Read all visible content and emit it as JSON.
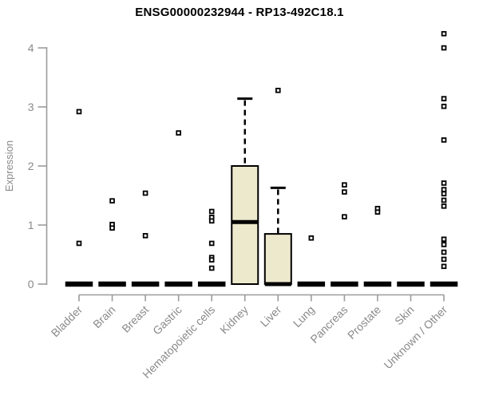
{
  "chart_data": {
    "type": "box",
    "title": "ENSG00000232944 - RP13-492C18.1",
    "ylabel": "Expression",
    "ylim": [
      0,
      4.3
    ],
    "yticks": [
      0,
      1,
      2,
      3,
      4
    ],
    "x_tick_rotation": -45,
    "legend": "none",
    "grid": false,
    "colors": {
      "box_fill": "#ede9cd",
      "box_stroke": "#000000",
      "median": "#000000",
      "outlier": "#000000",
      "axis": "#9b9b9b",
      "tick_label": "#8a8a8a",
      "title": "#000000",
      "background": "#ffffff"
    },
    "groups": [
      {
        "label": "Bladder",
        "q1": 0,
        "median": 0,
        "q3": 0,
        "whisker_low": 0,
        "whisker_high": 0,
        "outliers": [
          2.92,
          0.69
        ]
      },
      {
        "label": "Brain",
        "q1": 0,
        "median": 0,
        "q3": 0,
        "whisker_low": 0,
        "whisker_high": 0,
        "outliers": [
          1.41,
          1.01,
          0.95
        ]
      },
      {
        "label": "Breast",
        "q1": 0,
        "median": 0,
        "q3": 0,
        "whisker_low": 0,
        "whisker_high": 0,
        "outliers": [
          1.54,
          0.82
        ]
      },
      {
        "label": "Gastric",
        "q1": 0,
        "median": 0,
        "q3": 0,
        "whisker_low": 0,
        "whisker_high": 0,
        "outliers": [
          2.56
        ]
      },
      {
        "label": "Hematopoietic cells",
        "q1": 0,
        "median": 0,
        "q3": 0,
        "whisker_low": 0,
        "whisker_high": 0,
        "outliers": [
          1.23,
          1.13,
          1.07,
          0.69,
          0.45,
          0.41,
          0.27
        ]
      },
      {
        "label": "Kidney",
        "q1": 0,
        "median": 1.05,
        "q3": 2.0,
        "whisker_low": 0,
        "whisker_high": 3.14,
        "outliers": []
      },
      {
        "label": "Liver",
        "q1": 0,
        "median": 0,
        "q3": 0.85,
        "whisker_low": 0,
        "whisker_high": 1.63,
        "outliers": [
          3.28
        ]
      },
      {
        "label": "Lung",
        "q1": 0,
        "median": 0,
        "q3": 0,
        "whisker_low": 0,
        "whisker_high": 0,
        "outliers": [
          0.78
        ]
      },
      {
        "label": "Pancreas",
        "q1": 0,
        "median": 0,
        "q3": 0,
        "whisker_low": 0,
        "whisker_high": 0,
        "outliers": [
          1.68,
          1.56,
          1.14
        ]
      },
      {
        "label": "Prostate",
        "q1": 0,
        "median": 0,
        "q3": 0,
        "whisker_low": 0,
        "whisker_high": 0,
        "outliers": [
          1.28,
          1.22
        ]
      },
      {
        "label": "Skin",
        "q1": 0,
        "median": 0,
        "q3": 0,
        "whisker_low": 0,
        "whisker_high": 0,
        "outliers": []
      },
      {
        "label": "Unknown / Other",
        "q1": 0,
        "median": 0,
        "q3": 0,
        "whisker_low": 0,
        "whisker_high": 0,
        "outliers": [
          4.24,
          4.0,
          3.14,
          3.01,
          2.44,
          1.71,
          1.6,
          1.53,
          1.42,
          1.32,
          0.76,
          0.67,
          0.54,
          0.42,
          0.3
        ]
      }
    ]
  }
}
